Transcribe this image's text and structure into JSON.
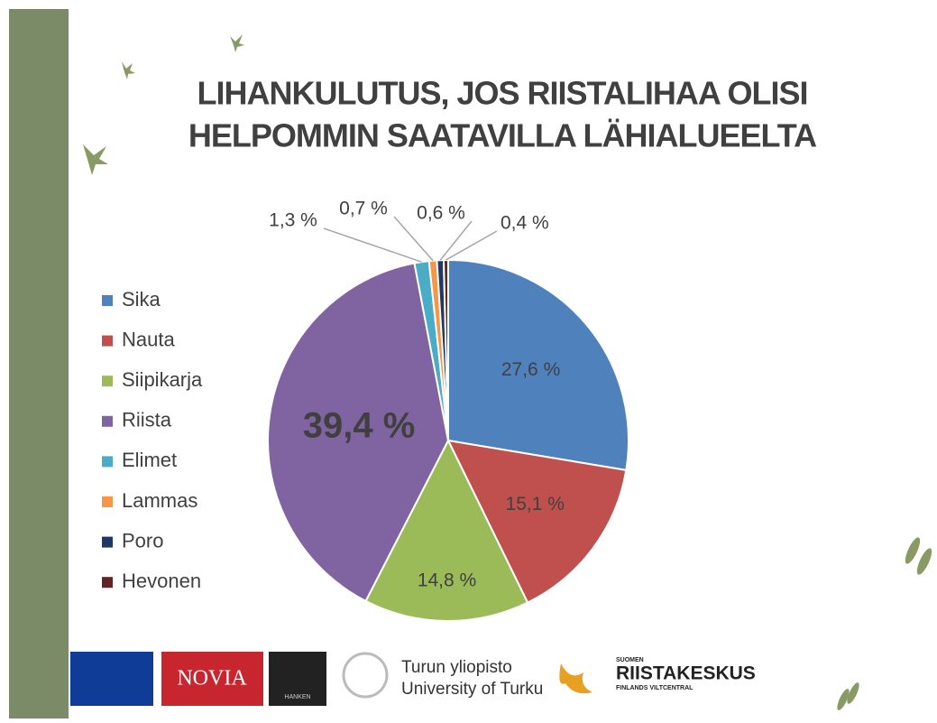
{
  "chart_data": {
    "type": "pie",
    "title": [
      "LIHANKULUTUS, JOS RIISTALIHAA OLISI",
      "HELPOMMIN SAATAVILLA LÄHIALUEELTA"
    ],
    "categories": [
      "Sika",
      "Nauta",
      "Siipikarja",
      "Riista",
      "Elimet",
      "Lammas",
      "Poro",
      "Hevonen"
    ],
    "values": [
      27.6,
      15.1,
      14.8,
      39.4,
      1.3,
      0.7,
      0.6,
      0.4
    ],
    "value_labels": [
      "27,6 %",
      "15,1 %",
      "14,8 %",
      "39,4 %",
      "1,3 %",
      "0,7 %",
      "0,6 %",
      "0,4 %"
    ],
    "colors": [
      "#4f81bd",
      "#c0504d",
      "#9bbb59",
      "#8064a2",
      "#4bacc6",
      "#f79646",
      "#1f3864",
      "#632523"
    ],
    "legend": "left"
  },
  "logos": {
    "novia": "NOVIA",
    "hanken": "HANKEN",
    "turku": [
      "Turun yliopisto",
      "University of Turku"
    ],
    "riistakeskus": [
      "SUOMEN",
      "RIISTAKESKUS",
      "FINLANDS VILTCENTRAL"
    ]
  }
}
